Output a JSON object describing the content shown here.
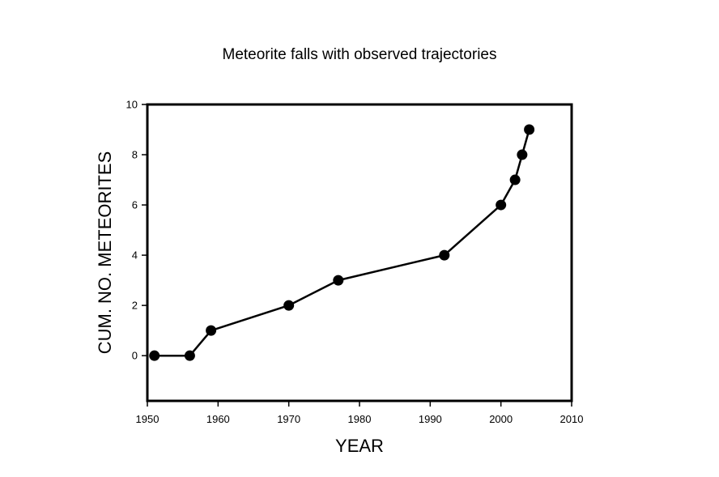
{
  "chart_data": {
    "type": "line",
    "title": "Meteorite falls with observed trajectories",
    "xlabel": "YEAR",
    "ylabel": "CUM. NO. METEORITES",
    "xlim": [
      1950,
      2010
    ],
    "ylim": [
      -1.8,
      10
    ],
    "xticks": [
      1950,
      1960,
      1970,
      1980,
      1990,
      2000,
      2010
    ],
    "xtick_labels": [
      "1950",
      "1960",
      "1970",
      "1980",
      "1990",
      "2000",
      "2010"
    ],
    "yticks": [
      0,
      2,
      4,
      6,
      8,
      10
    ],
    "ytick_labels": [
      "0",
      "2",
      "4",
      "6",
      "8",
      "10"
    ],
    "grid": false,
    "legend": "none",
    "series": [
      {
        "color": "#000000",
        "marker": "filled-circle",
        "x": [
          1951,
          1956,
          1959,
          1970,
          1977,
          1992,
          2000,
          2002,
          2003,
          2004
        ],
        "y": [
          0,
          0,
          1,
          2,
          3,
          4,
          6,
          7,
          8,
          9
        ]
      }
    ]
  }
}
